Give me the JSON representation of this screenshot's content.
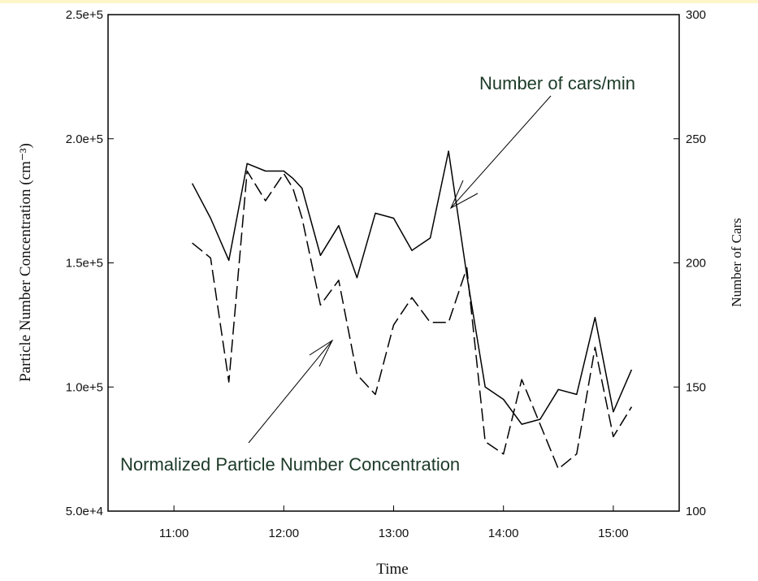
{
  "chart_data": {
    "type": "line",
    "xlabel": "Time",
    "ylabel_left": "Particle Number Concentration (cm⁻³)",
    "ylabel_right": "Number of Cars",
    "x_ticks": [
      "11:00",
      "12:00",
      "13:00",
      "14:00",
      "15:00"
    ],
    "x_range_hours": [
      10.4,
      15.6
    ],
    "y_left_ticks": [
      "5.0e+4",
      "1.0e+5",
      "1.5e+5",
      "2.0e+5",
      "2.5e+5"
    ],
    "y_left_range": [
      50000,
      250000
    ],
    "y_right_ticks": [
      "100",
      "150",
      "200",
      "250",
      "300"
    ],
    "y_right_range": [
      100,
      300
    ],
    "grid": false,
    "series": [
      {
        "axis": "right",
        "style": "solid",
        "x": [
          "11:10",
          "11:20",
          "11:30",
          "11:40",
          "11:50",
          "12:00",
          "12:05",
          "12:10",
          "12:20",
          "12:30",
          "12:40",
          "12:50",
          "13:00",
          "13:10",
          "13:20",
          "13:30",
          "13:40",
          "13:50",
          "14:00",
          "14:10",
          "14:20",
          "14:30",
          "14:40",
          "14:50",
          "15:00",
          "15:10"
        ],
        "values": [
          232,
          218,
          201,
          240,
          237,
          237,
          234,
          230,
          203,
          215,
          194,
          220,
          218,
          205,
          210,
          245,
          195,
          150,
          145,
          135,
          137,
          149,
          147,
          178,
          140,
          157
        ]
      },
      {
        "axis": "right",
        "style": "dashed",
        "x": [
          "11:10",
          "11:15",
          "11:20",
          "11:30",
          "11:40",
          "11:50",
          "12:00",
          "12:05",
          "12:10",
          "12:20",
          "12:30",
          "12:40",
          "12:50",
          "13:00",
          "13:10",
          "13:20",
          "13:30",
          "13:40",
          "13:50",
          "14:00",
          "14:10",
          "14:20",
          "14:30",
          "14:40",
          "14:50",
          "15:00",
          "15:10"
        ],
        "values": [
          208,
          205,
          202,
          152,
          237,
          225,
          236,
          230,
          218,
          183,
          193,
          155,
          147,
          175,
          186,
          176,
          176,
          198,
          128,
          123,
          153,
          135,
          117,
          123,
          166,
          130,
          142
        ]
      }
    ],
    "annotations": [
      {
        "text": "Number of cars/min",
        "points_to_series": 0
      },
      {
        "text": "Normalized Particle Number Concentration",
        "points_to_series": 1
      }
    ]
  }
}
